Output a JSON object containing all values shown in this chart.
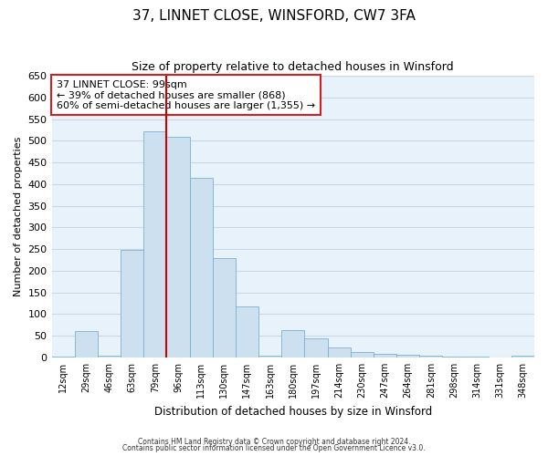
{
  "title": "37, LINNET CLOSE, WINSFORD, CW7 3FA",
  "subtitle": "Size of property relative to detached houses in Winsford",
  "xlabel": "Distribution of detached houses by size in Winsford",
  "ylabel": "Number of detached properties",
  "bar_color": "#cde0f0",
  "bar_edge_color": "#7ab0d4",
  "bin_labels": [
    "12sqm",
    "29sqm",
    "46sqm",
    "63sqm",
    "79sqm",
    "96sqm",
    "113sqm",
    "130sqm",
    "147sqm",
    "163sqm",
    "180sqm",
    "197sqm",
    "214sqm",
    "230sqm",
    "247sqm",
    "264sqm",
    "281sqm",
    "298sqm",
    "314sqm",
    "331sqm",
    "348sqm"
  ],
  "bar_heights": [
    3,
    60,
    5,
    248,
    521,
    510,
    415,
    229,
    118,
    5,
    63,
    45,
    22,
    13,
    8,
    6,
    4,
    3,
    2,
    0,
    5
  ],
  "ylim": [
    0,
    650
  ],
  "yticks": [
    0,
    50,
    100,
    150,
    200,
    250,
    300,
    350,
    400,
    450,
    500,
    550,
    600,
    650
  ],
  "vline_pos": 5.0,
  "vline_color": "#cc0000",
  "annotation_text": "37 LINNET CLOSE: 99sqm\n← 39% of detached houses are smaller (868)\n60% of semi-detached houses are larger (1,355) →",
  "footer1": "Contains HM Land Registry data © Crown copyright and database right 2024.",
  "footer2": "Contains public sector information licensed under the Open Government Licence v3.0.",
  "background_color": "#ffffff",
  "plot_bg_color": "#e8f2fb",
  "grid_color": "#c8d8e8"
}
